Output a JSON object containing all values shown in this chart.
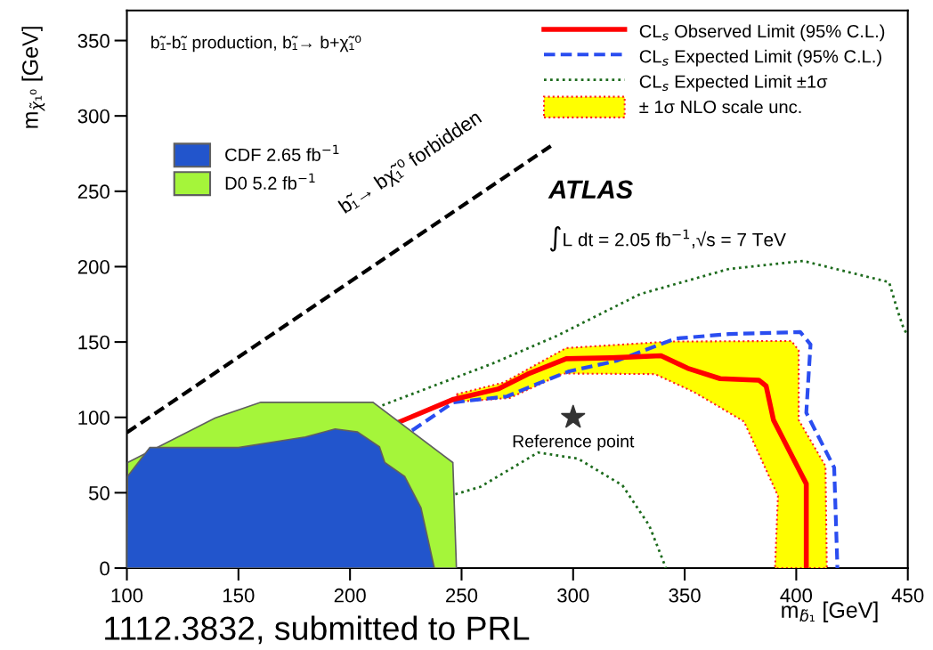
{
  "chart_data": {
    "type": "line",
    "xlabel": "m$_{b̃₁}$ [GeV]",
    "ylabel": "m$_{χ̃₁⁰}$ [GeV]",
    "xlim": [
      100,
      450
    ],
    "xticks": [
      100,
      150,
      200,
      250,
      300,
      350,
      400,
      450
    ],
    "ylim": [
      0,
      370
    ],
    "yticks": [
      0,
      50,
      100,
      150,
      200,
      250,
      300,
      350
    ],
    "legend": "top right",
    "grid": false,
    "series": [
      {
        "name": "CDF 2.65 fb$^{−1}$",
        "type": "area",
        "color": "#2255cc",
        "x": [
          100,
          100.3,
          110.3,
          150,
          180,
          193.3,
          203.3,
          213.2,
          215.6,
          224.5,
          231.8,
          237.8,
          100
        ],
        "values": [
          0,
          60.8,
          80,
          80,
          87,
          92.3,
          90.3,
          80.5,
          70,
          60.8,
          40,
          0,
          0
        ]
      },
      {
        "name": "D0 5.2 fb$^{−1}$",
        "type": "area",
        "color": "#a5f53a",
        "x": [
          100,
          100.3,
          139.5,
          160,
          210.3,
          246.1,
          247.7,
          100
        ],
        "values": [
          0,
          70,
          99.6,
          110,
          110,
          70,
          0,
          0
        ]
      },
      {
        "name": "CL$_{s}$ Observed Limit (95% C.L.)",
        "color": "#ff0000",
        "line_style": "solid",
        "x": [
          222.5,
          246.4,
          266.3,
          279.6,
          296.9,
          316.8,
          339.4,
          351.3,
          365.9,
          383.2,
          386.5,
          389.8,
          404.5,
          404.5
        ],
        "values": [
          97.2,
          112,
          118.8,
          128.7,
          138.9,
          139.5,
          140.9,
          132.6,
          125.7,
          124.7,
          120.8,
          98.2,
          55.9,
          0
        ]
      },
      {
        "name": "CL$_{s}$ Expected Limit (95% C.L.)",
        "color": "#2a4df0",
        "line_style": "dashed",
        "x": [
          227.8,
          246.4,
          270.3,
          284.9,
          298.2,
          319.4,
          346,
          369.9,
          401.8,
          406.4,
          404.5,
          417,
          418.4,
          418.4
        ],
        "values": [
          91.3,
          110,
          113.9,
          122.8,
          130.6,
          137.5,
          152.3,
          155.3,
          156.6,
          148.4,
          103.1,
          66.7,
          2.8,
          0
        ]
      },
      {
        "name": "CL$_{s}$ Expected Limit ±1σ",
        "color": "#1d6b1d",
        "line_style": "dotted",
        "x": [
          214.5,
          263.7,
          292.9,
          330,
          369.9,
          403.1,
          441.6,
          445.6,
          448.3,
          450,
          null,
          247.2,
          258.4,
          284.3,
          302.2,
          322.1,
          334.1,
          341.3,
          341.5
        ],
        "values": [
          108,
          135.6,
          154.2,
          181.8,
          198.5,
          203.8,
          189.7,
          170,
          158.2,
          155,
          null,
          49,
          53.9,
          76.7,
          72.6,
          54.9,
          28.3,
          1.2,
          0
        ]
      },
      {
        "name": "± 1σ NLO scale unc.",
        "type": "area",
        "color": "#ffff00",
        "line_style": "dotted",
        "x": [
          247.7,
          269,
          296.9,
          343.3,
          397.8,
          401.1,
          401.1,
          413.1,
          413.7,
          390.5,
          391.8,
          376.6,
          362,
          354,
          336.7,
          295.5,
          271.6,
          250.4
        ],
        "values": [
          115.3,
          123.2,
          146,
          150.3,
          150.7,
          144.5,
          98.2,
          67.7,
          0,
          0,
          48,
          97.2,
          110,
          116.9,
          128.7,
          129.1,
          112.9,
          110.6
        ]
      },
      {
        "color": "#000000",
        "line_style": "dashed",
        "x": [
          100,
          290
        ],
        "values": [
          90,
          280
        ]
      },
      {
        "type": "scatter",
        "color": "#333333",
        "marker": "star",
        "x": [
          300
        ],
        "values": [
          100
        ]
      }
    ],
    "annotations": [
      "b̃₁-b̃₁ production, b̃₁→ b+χ̃₁⁰",
      "ATLAS",
      "∫L dt = 2.05 fb$^{−1}$,√s = 7 TeV",
      "b̃₁→ bχ̃₁⁰ forbidden",
      {
        "text": "Reference point",
        "x": 300,
        "y": 100
      },
      "1112.3832, submitted to PRL"
    ]
  }
}
